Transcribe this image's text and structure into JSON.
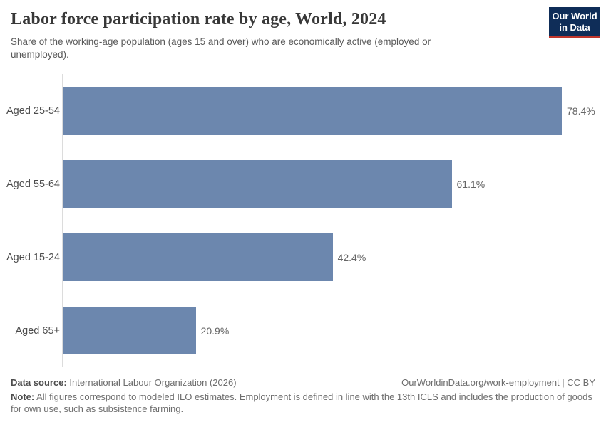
{
  "chart_data": {
    "type": "bar",
    "orientation": "horizontal",
    "title": "Labor force participation rate by age, World, 2024",
    "subtitle": "Share of the working-age population (ages 15 and over) who are economically active (employed or unemployed).",
    "categories": [
      "Aged 25-54",
      "Aged 55-64",
      "Aged 15-24",
      "Aged 65+"
    ],
    "values": [
      78.4,
      61.1,
      42.4,
      20.9
    ],
    "value_labels": [
      "78.4%",
      "61.1%",
      "42.4%",
      "20.9%"
    ],
    "unit": "%",
    "xlim": [
      0,
      78.4
    ],
    "grid": false,
    "legend": "none",
    "bar_color": "#6c87ae",
    "axis_line_color": "#dcdcdc"
  },
  "logo": {
    "line1": "Our World",
    "line2": "in Data",
    "background_color": "#0f2d58",
    "accent_color": "#c0362c"
  },
  "footer": {
    "datasource_label": "Data source:",
    "datasource_value": "International Labour Organization (2026)",
    "link": "OurWorldinData.org/work-employment | CC BY",
    "note_label": "Note:",
    "note_text": "All figures correspond to modeled ILO estimates. Employment is defined in line with the 13th ICLS and includes the production of goods for own use, such as subsistence farming."
  }
}
